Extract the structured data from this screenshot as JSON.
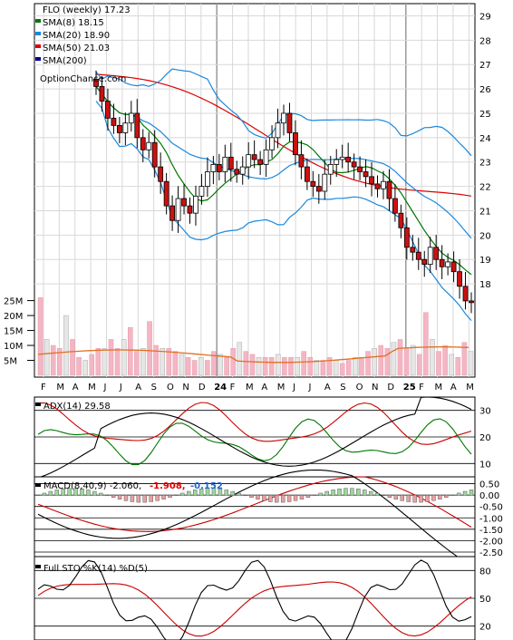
{
  "chart_data": [
    {
      "type": "candlestick",
      "panel": "price",
      "title": "FLO (weekly) 17.23",
      "watermark": "OptionChance.com",
      "legend": [
        {
          "label": "SMA(8) 18.15",
          "color": "#007700"
        },
        {
          "label": "SMA(20) 18.90",
          "color": "#1a88dd"
        },
        {
          "label": "SMA(50) 21.03",
          "color": "#dd0000"
        },
        {
          "label": "SMA(200)",
          "color": "#000099"
        }
      ],
      "y_ticks": [
        "29",
        "28",
        "27",
        "26",
        "25",
        "24",
        "23",
        "22",
        "21",
        "20",
        "19",
        "18"
      ],
      "ylim": [
        17,
        29.5
      ],
      "x_ticks": [
        "F",
        "M",
        "A",
        "M",
        "J",
        "J",
        "A",
        "S",
        "O",
        "N",
        "D",
        "24",
        "F",
        "M",
        "A",
        "M",
        "J",
        "J",
        "A",
        "S",
        "O",
        "N",
        "D",
        "25",
        "F",
        "M",
        "A",
        "M"
      ],
      "close_approx": [
        26.1,
        25.5,
        24.8,
        24.5,
        24.2,
        24.6,
        25.0,
        24.0,
        23.5,
        23.8,
        22.8,
        22.2,
        21.2,
        20.6,
        21.5,
        21.2,
        20.9,
        21.6,
        22.0,
        22.6,
        22.9,
        22.6,
        23.2,
        22.7,
        22.5,
        22.8,
        23.3,
        23.1,
        22.9,
        23.5,
        24.0,
        24.6,
        25.0,
        24.2,
        23.3,
        22.8,
        22.2,
        22.0,
        21.8,
        22.5,
        22.9,
        23.1,
        23.2,
        23.0,
        22.8,
        22.6,
        22.4,
        22.1,
        21.9,
        22.2,
        21.5,
        20.9,
        20.3,
        19.5,
        19.3,
        19.0,
        18.8,
        19.5,
        19.0,
        18.7,
        18.9,
        18.5,
        17.9,
        17.3,
        17.23
      ]
    },
    {
      "type": "bar",
      "panel": "volume",
      "y_ticks": [
        "25M",
        "20M",
        "15M",
        "10M",
        "5M"
      ],
      "ylim": [
        0,
        27
      ],
      "values_approx_M": [
        26,
        12,
        10,
        9,
        20,
        12,
        6,
        5,
        7,
        9,
        9,
        12,
        9,
        12,
        16,
        8,
        9,
        18,
        10,
        9,
        9,
        8,
        7,
        6,
        5,
        6,
        5,
        8,
        7,
        6,
        9,
        11,
        8,
        7,
        6,
        6,
        6,
        7,
        6,
        6,
        6,
        8,
        6,
        5,
        5,
        6,
        5,
        4,
        5,
        6,
        6,
        8,
        9,
        10,
        9,
        11,
        12,
        9,
        10,
        7,
        21,
        12,
        8,
        10,
        7,
        6,
        11,
        8
      ]
    },
    {
      "type": "line",
      "panel": "adx",
      "label": "ADX(14) 29.58",
      "y_ticks": [
        "30",
        "20",
        "10"
      ],
      "ylim": [
        5,
        35
      ]
    },
    {
      "type": "line",
      "panel": "macd",
      "label": "MACD(8,40,9) -2.060,",
      "macd_value": "-1.908,",
      "signal_value": "-0.152",
      "y_ticks": [
        "0.50",
        "0.00",
        "-0.50",
        "-1.00",
        "-1.50",
        "-2.00",
        "-2.50"
      ],
      "ylim": [
        -2.7,
        0.8
      ]
    },
    {
      "type": "line",
      "panel": "stochastic",
      "label": "Full STO %K(14) %D(5)",
      "y_ticks": [
        "80",
        "50",
        "20"
      ],
      "ylim": [
        5,
        95
      ]
    }
  ]
}
